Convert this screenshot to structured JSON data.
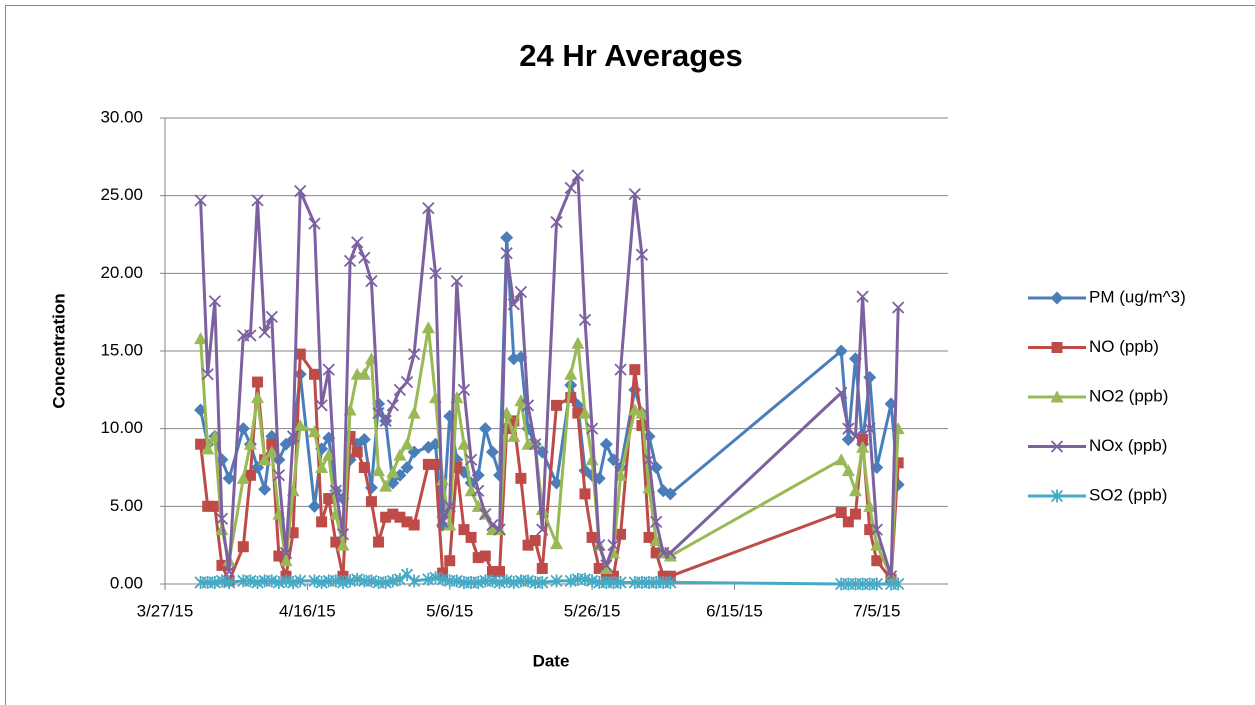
{
  "chart_data": {
    "type": "line",
    "title": "24 Hr Averages",
    "xlabel": "Date",
    "ylabel": "Concentration",
    "x": [
      "4/1/15",
      "4/2/15",
      "4/3/15",
      "4/4/15",
      "4/5/15",
      "4/7/15",
      "4/8/15",
      "4/9/15",
      "4/10/15",
      "4/11/15",
      "4/12/15",
      "4/13/15",
      "4/14/15",
      "4/15/15",
      "4/17/15",
      "4/18/15",
      "4/19/15",
      "4/20/15",
      "4/21/15",
      "4/22/15",
      "4/23/15",
      "4/24/15",
      "4/25/15",
      "4/26/15",
      "4/27/15",
      "4/28/15",
      "4/29/15",
      "4/30/15",
      "5/1/15",
      "5/3/15",
      "5/4/15",
      "5/5/15",
      "5/6/15",
      "5/7/15",
      "5/8/15",
      "5/9/15",
      "5/10/15",
      "5/11/15",
      "5/12/15",
      "5/13/15",
      "5/14/15",
      "5/15/15",
      "5/16/15",
      "5/17/15",
      "5/18/15",
      "5/19/15",
      "5/21/15",
      "5/23/15",
      "5/24/15",
      "5/25/15",
      "5/26/15",
      "5/27/15",
      "5/28/15",
      "5/29/15",
      "5/30/15",
      "6/1/15",
      "6/2/15",
      "6/3/15",
      "6/4/15",
      "6/5/15",
      "6/6/15",
      "6/30/15",
      "7/1/15",
      "7/2/15",
      "7/3/15",
      "7/4/15",
      "7/5/15",
      "7/7/15",
      "7/8/15"
    ],
    "series": [
      {
        "name": "PM (ug/m^3)",
        "color": "#4a7ebb",
        "marker": "diamond",
        "values": [
          11.2,
          9,
          9.5,
          8,
          6.8,
          10,
          9,
          7.5,
          6.1,
          9.5,
          8,
          9,
          9.3,
          13.5,
          5,
          8.7,
          9.4,
          6,
          5.5,
          8,
          9,
          9.3,
          6.2,
          11.6,
          10.5,
          6.5,
          7,
          7.5,
          8.5,
          8.8,
          9,
          3.8,
          10.8,
          8,
          7.2,
          6.5,
          7,
          10,
          8.5,
          7,
          22.3,
          14.5,
          14.6,
          10,
          9,
          8.5,
          6.5,
          12.8,
          11.5,
          7.3,
          7,
          6.8,
          9,
          8,
          7.5,
          12.5,
          11,
          9.5,
          7.5,
          6,
          5.8,
          15.0,
          9.3,
          14.5,
          9,
          13.3,
          7.5,
          11.6,
          6.4
        ]
      },
      {
        "name": "NO (ppb)",
        "color": "#be4b48",
        "marker": "square",
        "values": [
          9,
          5,
          5,
          1.2,
          0.2,
          2.4,
          7,
          13,
          8,
          9,
          1.8,
          0.5,
          3.3,
          14.8,
          13.5,
          4,
          5.5,
          2.7,
          0.5,
          9.5,
          8.5,
          7.5,
          5.3,
          2.7,
          4.3,
          4.5,
          4.3,
          4,
          3.8,
          7.7,
          7.7,
          0.7,
          1.5,
          7.5,
          3.5,
          3,
          1.7,
          1.8,
          0.8,
          0.8,
          10,
          10.5,
          6.8,
          2.5,
          2.8,
          1,
          11.5,
          12,
          11,
          5.8,
          3,
          1,
          0.3,
          0.5,
          3.2,
          13.8,
          10.2,
          3,
          2,
          0.5,
          0.5,
          4.6,
          4,
          4.5,
          9.3,
          3.5,
          1.5,
          0.3,
          7.8
        ]
      },
      {
        "name": "NO2 (ppb)",
        "color": "#98b954",
        "marker": "triangle",
        "values": [
          15.8,
          8.7,
          9.5,
          3.5,
          1.5,
          6.8,
          9,
          12,
          8,
          8.5,
          4.5,
          1.5,
          6,
          10.2,
          9.8,
          7.5,
          8.3,
          4.5,
          2.5,
          11.2,
          13.5,
          13.5,
          14.5,
          7.3,
          6.3,
          7.2,
          8.3,
          9,
          11,
          16.5,
          12,
          6.7,
          3.8,
          12,
          9,
          6,
          5,
          4.5,
          3.5,
          3.5,
          11,
          9.5,
          11.8,
          9,
          9,
          4.8,
          2.6,
          13.5,
          15.5,
          11,
          8,
          2.5,
          1,
          2,
          7,
          11.2,
          11,
          6.2,
          2.8,
          2,
          1.8,
          8,
          7.3,
          6,
          8.8,
          5,
          2.5,
          0.5,
          10
        ]
      },
      {
        "name": "NOx (ppb)",
        "color": "#7d60a0",
        "marker": "x",
        "values": [
          24.7,
          13.5,
          18.2,
          4.2,
          0.8,
          16,
          16,
          24.7,
          16.2,
          17.2,
          7,
          2,
          9.5,
          25.3,
          23.2,
          11.5,
          13.8,
          6,
          3.2,
          20.8,
          22,
          21,
          19.5,
          11,
          10.5,
          11.5,
          12.5,
          13,
          14.8,
          24.2,
          20,
          4,
          5,
          19.5,
          12.5,
          8,
          6,
          4.5,
          3.8,
          3.5,
          21.3,
          18,
          18.8,
          11.5,
          9,
          3.5,
          23.3,
          25.5,
          26.3,
          17,
          10,
          2.5,
          1.2,
          2.5,
          13.8,
          25.1,
          21.2,
          8,
          4,
          2,
          2,
          12.3,
          10,
          9.5,
          18.5,
          10,
          3.5,
          0.5,
          17.8
        ]
      },
      {
        "name": "SO2 (ppb)",
        "color": "#46aac5",
        "marker": "star",
        "values": [
          0.1,
          0.1,
          0.1,
          0.2,
          0.1,
          0.2,
          0.2,
          0.1,
          0.2,
          0.2,
          0.1,
          0.2,
          0.1,
          0.2,
          0.2,
          0.1,
          0.2,
          0.2,
          0.1,
          0.2,
          0.3,
          0.2,
          0.2,
          0.1,
          0.1,
          0.2,
          0.3,
          0.6,
          0.2,
          0.3,
          0.4,
          0.3,
          0.2,
          0.2,
          0.1,
          0.1,
          0.1,
          0.2,
          0.2,
          0.1,
          0.2,
          0.1,
          0.2,
          0.2,
          0.1,
          0.1,
          0.2,
          0.2,
          0.3,
          0.3,
          0.2,
          0.1,
          0.1,
          0.1,
          0.1,
          0.1,
          0.1,
          0.1,
          0.1,
          0.1,
          0.1,
          0,
          0,
          0,
          0,
          0,
          0,
          0,
          0
        ]
      }
    ],
    "xlim": [
      "3/27/15",
      "7/15/15"
    ],
    "xticks": [
      "3/27/15",
      "4/16/15",
      "5/6/15",
      "5/26/15",
      "6/15/15",
      "7/5/15"
    ],
    "ylim": [
      0,
      30
    ],
    "yticks": [
      {
        "value": 0,
        "label": "0.00"
      },
      {
        "value": 5,
        "label": "5.00"
      },
      {
        "value": 10,
        "label": "10.00"
      },
      {
        "value": 15,
        "label": "15.00"
      },
      {
        "value": 20,
        "label": "20.00"
      },
      {
        "value": 25,
        "label": "25.00"
      },
      {
        "value": 30,
        "label": "30.00"
      }
    ],
    "grid": true,
    "legend": "right"
  }
}
